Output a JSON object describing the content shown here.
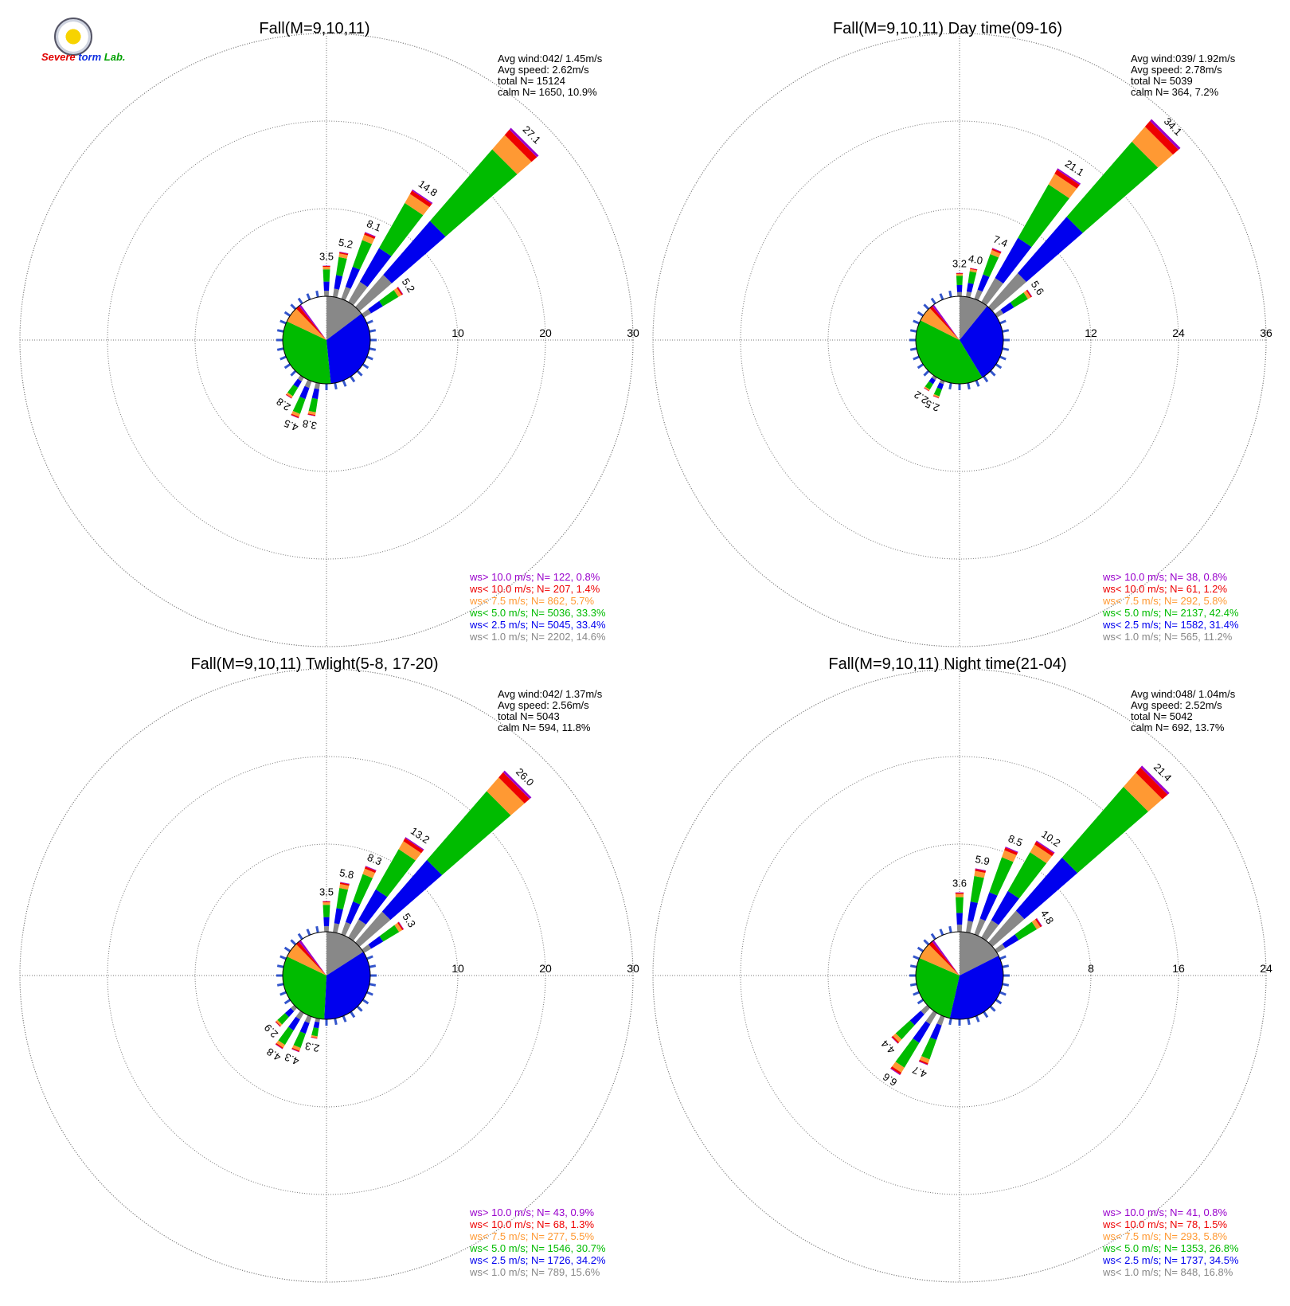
{
  "logo": {
    "text_s": "S",
    "text_evere": "evere",
    "text_storm": "torm",
    "text_lab": "Lab."
  },
  "chart_data": [
    {
      "type": "windrose",
      "title": "Fall(M=9,10,11)",
      "rings": [
        10,
        20,
        30
      ],
      "stats": [
        "Avg wind:042/ 1.45m/s",
        "Avg speed: 2.62m/s",
        "total N=       15124",
        "calm N=    1650,  10.9%"
      ],
      "petals": [
        {
          "dir": 0,
          "value": 3.5
        },
        {
          "dir": 11.25,
          "value": 5.2
        },
        {
          "dir": 22.5,
          "value": 8.1
        },
        {
          "dir": 33.75,
          "value": 14.8
        },
        {
          "dir": 45,
          "value": 27.1
        },
        {
          "dir": 56.25,
          "value": 5.2
        },
        {
          "dir": 191.25,
          "value": 3.8
        },
        {
          "dir": 202.5,
          "value": 4.5
        },
        {
          "dir": 213.75,
          "value": 2.8
        }
      ],
      "legend": [
        {
          "label": "ws> 10.0 m/s; N=   122,  0.8%",
          "color": "#9900cc"
        },
        {
          "label": "ws< 10.0 m/s; N=   207,  1.4%",
          "color": "#ee0000"
        },
        {
          "label": "ws<  7.5 m/s; N=   862,  5.7%",
          "color": "#ff9933"
        },
        {
          "label": "ws<  5.0 m/s; N= 5036, 33.3%",
          "color": "#00bb00"
        },
        {
          "label": "ws<  2.5 m/s; N= 5045, 33.4%",
          "color": "#0000ee"
        },
        {
          "label": "ws<  1.0 m/s; N= 2202, 14.6%",
          "color": "#888888"
        }
      ],
      "pie": [
        14.6,
        33.4,
        33.3,
        5.7,
        1.4,
        0.8
      ]
    },
    {
      "type": "windrose",
      "title": "Fall(M=9,10,11) Day time(09-16)",
      "rings": [
        12,
        24,
        36
      ],
      "stats": [
        "Avg wind:039/ 1.92m/s",
        "Avg speed: 2.78m/s",
        "total N=         5039",
        "calm N=     364,    7.2%"
      ],
      "petals": [
        {
          "dir": 0,
          "value": 3.2
        },
        {
          "dir": 11.25,
          "value": 4.0
        },
        {
          "dir": 22.5,
          "value": 7.4
        },
        {
          "dir": 33.75,
          "value": 21.1
        },
        {
          "dir": 45,
          "value": 34.1
        },
        {
          "dir": 56.25,
          "value": 5.6
        },
        {
          "dir": 202.5,
          "value": 2.5
        },
        {
          "dir": 213.75,
          "value": 2.2
        }
      ],
      "legend": [
        {
          "label": "ws> 10.0 m/s; N=    38,  0.8%",
          "color": "#9900cc"
        },
        {
          "label": "ws< 10.0 m/s; N=    61,  1.2%",
          "color": "#ee0000"
        },
        {
          "label": "ws<  7.5 m/s; N=   292,  5.8%",
          "color": "#ff9933"
        },
        {
          "label": "ws<  5.0 m/s; N= 2137, 42.4%",
          "color": "#00bb00"
        },
        {
          "label": "ws<  2.5 m/s; N= 1582, 31.4%",
          "color": "#0000ee"
        },
        {
          "label": "ws<  1.0 m/s; N=   565, 11.2%",
          "color": "#888888"
        }
      ],
      "pie": [
        11.2,
        31.4,
        42.4,
        5.8,
        1.2,
        0.8
      ]
    },
    {
      "type": "windrose",
      "title": "Fall(M=9,10,11) Twlight(5-8, 17-20)",
      "rings": [
        10,
        20,
        30
      ],
      "stats": [
        "Avg wind:042/ 1.37m/s",
        "Avg speed: 2.56m/s",
        "total N=         5043",
        "calm N=     594,   11.8%"
      ],
      "petals": [
        {
          "dir": 0,
          "value": 3.5
        },
        {
          "dir": 11.25,
          "value": 5.8
        },
        {
          "dir": 22.5,
          "value": 8.3
        },
        {
          "dir": 33.75,
          "value": 13.2
        },
        {
          "dir": 45,
          "value": 26.0
        },
        {
          "dir": 56.25,
          "value": 5.3
        },
        {
          "dir": 191.25,
          "value": 2.3
        },
        {
          "dir": 202.5,
          "value": 4.3
        },
        {
          "dir": 213.75,
          "value": 4.8
        },
        {
          "dir": 225,
          "value": 2.9
        }
      ],
      "legend": [
        {
          "label": "ws> 10.0 m/s; N=    43,  0.9%",
          "color": "#9900cc"
        },
        {
          "label": "ws< 10.0 m/s; N=    68,  1.3%",
          "color": "#ee0000"
        },
        {
          "label": "ws<  7.5 m/s; N=   277,  5.5%",
          "color": "#ff9933"
        },
        {
          "label": "ws<  5.0 m/s; N= 1546, 30.7%",
          "color": "#00bb00"
        },
        {
          "label": "ws<  2.5 m/s; N= 1726, 34.2%",
          "color": "#0000ee"
        },
        {
          "label": "ws<  1.0 m/s; N=   789, 15.6%",
          "color": "#888888"
        }
      ],
      "pie": [
        15.6,
        34.2,
        30.7,
        5.5,
        1.3,
        0.9
      ]
    },
    {
      "type": "windrose",
      "title": "Fall(M=9,10,11) Night time(21-04)",
      "rings": [
        8,
        16,
        24
      ],
      "stats": [
        "Avg wind:048/ 1.04m/s",
        "Avg speed: 2.52m/s",
        "total N=         5042",
        "calm N=     692,   13.7%"
      ],
      "petals": [
        {
          "dir": 0,
          "value": 3.6
        },
        {
          "dir": 11.25,
          "value": 5.9
        },
        {
          "dir": 22.5,
          "value": 8.5
        },
        {
          "dir": 33.75,
          "value": 10.2
        },
        {
          "dir": 45,
          "value": 21.4
        },
        {
          "dir": 56.25,
          "value": 4.8
        },
        {
          "dir": 202.5,
          "value": 4.7
        },
        {
          "dir": 213.75,
          "value": 6.6
        },
        {
          "dir": 225,
          "value": 4.4
        }
      ],
      "legend": [
        {
          "label": "ws> 10.0 m/s; N=    41,  0.8%",
          "color": "#9900cc"
        },
        {
          "label": "ws< 10.0 m/s; N=    78,  1.5%",
          "color": "#ee0000"
        },
        {
          "label": "ws<  7.5 m/s; N=   293,  5.8%",
          "color": "#ff9933"
        },
        {
          "label": "ws<  5.0 m/s; N= 1353, 26.8%",
          "color": "#00bb00"
        },
        {
          "label": "ws<  2.5 m/s; N= 1737, 34.5%",
          "color": "#0000ee"
        },
        {
          "label": "ws<  1.0 m/s; N=   848, 16.8%",
          "color": "#888888"
        }
      ],
      "pie": [
        16.8,
        34.5,
        26.8,
        5.8,
        1.5,
        0.8
      ]
    }
  ]
}
